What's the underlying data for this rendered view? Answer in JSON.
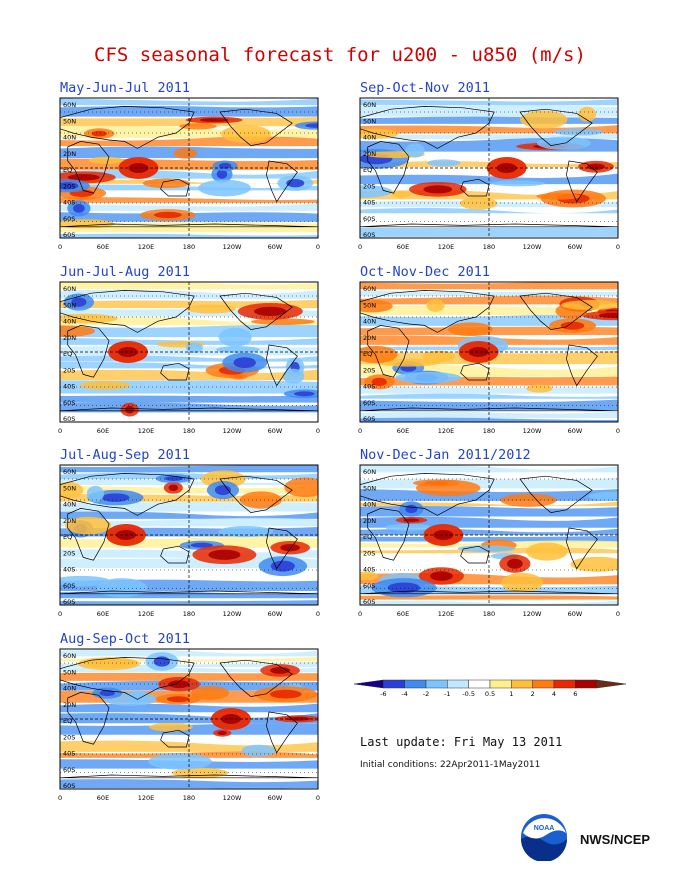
{
  "title": "CFS seasonal forecast for u200 - u850 (m/s)",
  "lat_labels": [
    "60N",
    "50N",
    "40N",
    "20N",
    "EQ",
    "20S",
    "40S",
    "60S",
    "60S"
  ],
  "lon_labels": [
    "0",
    "60E",
    "120E",
    "180",
    "120W",
    "60W",
    "0"
  ],
  "panels": [
    {
      "id": "mjj",
      "label": "May-Jun-Jul 2011",
      "seed": 11
    },
    {
      "id": "son",
      "label": "Sep-Oct-Nov 2011",
      "seed": 23
    },
    {
      "id": "jja",
      "label": "Jun-Jul-Aug 2011",
      "seed": 37
    },
    {
      "id": "ond",
      "label": "Oct-Nov-Dec 2011",
      "seed": 41
    },
    {
      "id": "jas",
      "label": "Jul-Aug-Sep 2011",
      "seed": 53
    },
    {
      "id": "ndj",
      "label": "Nov-Dec-Jan 2011/2012",
      "seed": 67
    },
    {
      "id": "aso",
      "label": "Aug-Sep-Oct 2011",
      "seed": 79
    }
  ],
  "legend": {
    "ticks": [
      "-6",
      "-4",
      "-2",
      "-1",
      "-0.5",
      "0.5",
      "1",
      "2",
      "4",
      "6"
    ],
    "colors": [
      "#160088",
      "#2a3fd6",
      "#3f8bf0",
      "#7cc4ff",
      "#bfeaff",
      "#ffffff",
      "#ffef8a",
      "#ffbf3b",
      "#ff7a10",
      "#e82800",
      "#a80000",
      "#6b2a1a"
    ]
  },
  "info": {
    "last_update": "Last update: Fri May 13 2011",
    "initial_conditions": "Initial conditions: 22Apr2011-1May2011"
  },
  "footer": {
    "agency": "NWS/NCEP",
    "logo_text": "NOAA"
  }
}
